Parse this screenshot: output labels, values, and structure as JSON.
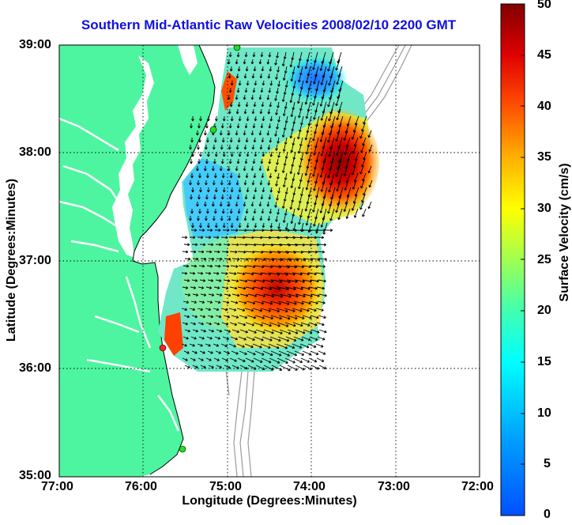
{
  "title": "Southern Mid-Atlantic Raw Velocities 2008/02/10 2200 GMT",
  "xlabel": "Longitude (Degrees:Minutes)",
  "ylabel": "Latitude (Degrees:Minutes)",
  "colorbar_label": "Surface Velocity (cm/s)",
  "x_ticks": [
    "77:00",
    "76:00",
    "75:00",
    "74:00",
    "73:00",
    "72:00"
  ],
  "y_ticks": [
    "39:00",
    "38:00",
    "37:00",
    "36:00",
    "35:00"
  ],
  "colorbar_ticks": [
    "50",
    "45",
    "40",
    "35",
    "30",
    "25",
    "20",
    "15",
    "10",
    "5",
    "0"
  ],
  "colors": {
    "land": "#4ef5a0",
    "title": "#1010e0",
    "grid": "#000000"
  },
  "chart_data": {
    "type": "heatmap",
    "title": "Southern Mid-Atlantic Raw Velocities 2008/02/10 2200 GMT",
    "xlabel": "Longitude (Degrees:Minutes)",
    "ylabel": "Latitude (Degrees:Minutes)",
    "x_range": [
      -77,
      -72
    ],
    "y_range": [
      35,
      39
    ],
    "colorbar_range": [
      0,
      50
    ],
    "colorbar_label": "Surface Velocity (cm/s)",
    "grid": true,
    "colormap": "jet"
  }
}
